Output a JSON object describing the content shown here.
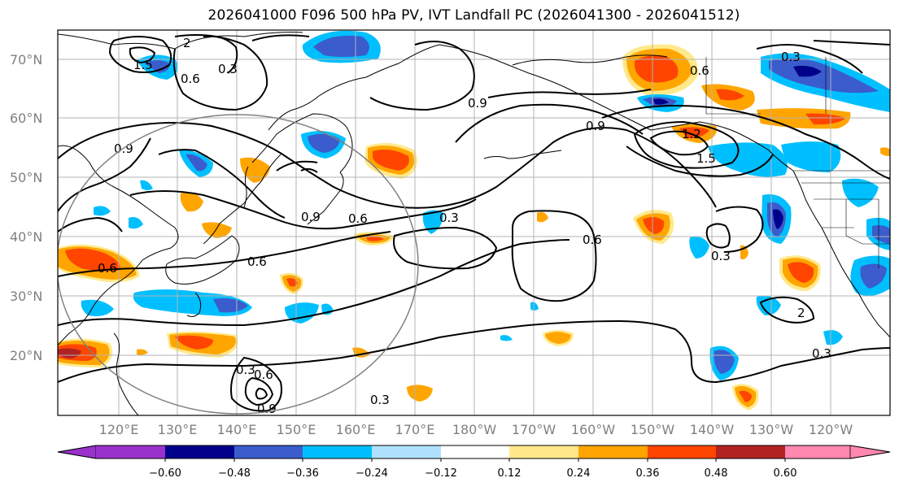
{
  "title": "2026041000 F096 500 hPa PV, IVT Landfall PC (2026041300 - 2026041512)",
  "lat_labels": [
    "70°N",
    "60°N",
    "50°N",
    "40°N",
    "30°N",
    "20°N"
  ],
  "lon_labels": [
    "120°E",
    "130°E",
    "140°E",
    "150°E",
    "160°E",
    "170°E",
    "180°W",
    "170°W",
    "160°W",
    "150°W",
    "140°W",
    "130°W",
    "120°W"
  ],
  "contour_labels": [
    "1.5",
    "2",
    "0.6",
    "0.3",
    "0.9",
    "0.6",
    "0.9",
    "1.2",
    "1.5",
    "0.9",
    "0.3",
    "0.9",
    "0.6",
    "0.3",
    "0.6",
    "0.6",
    "0.6",
    "0.3",
    "2",
    "0.3",
    "0.3",
    "0.6",
    "0.9",
    "0.3"
  ],
  "colorbar": {
    "ticks": [
      "−0.60",
      "−0.48",
      "−0.36",
      "−0.24",
      "−0.12",
      "0.12",
      "0.24",
      "0.36",
      "0.48",
      "0.60"
    ],
    "colors": [
      "#9932cc",
      "#00008b",
      "#3a5ccc",
      "#00bfff",
      "#b0e2ff",
      "#ffffff",
      "#ffe98a",
      "#ffa500",
      "#ff4500",
      "#b22222",
      "#ff88b0"
    ]
  }
}
